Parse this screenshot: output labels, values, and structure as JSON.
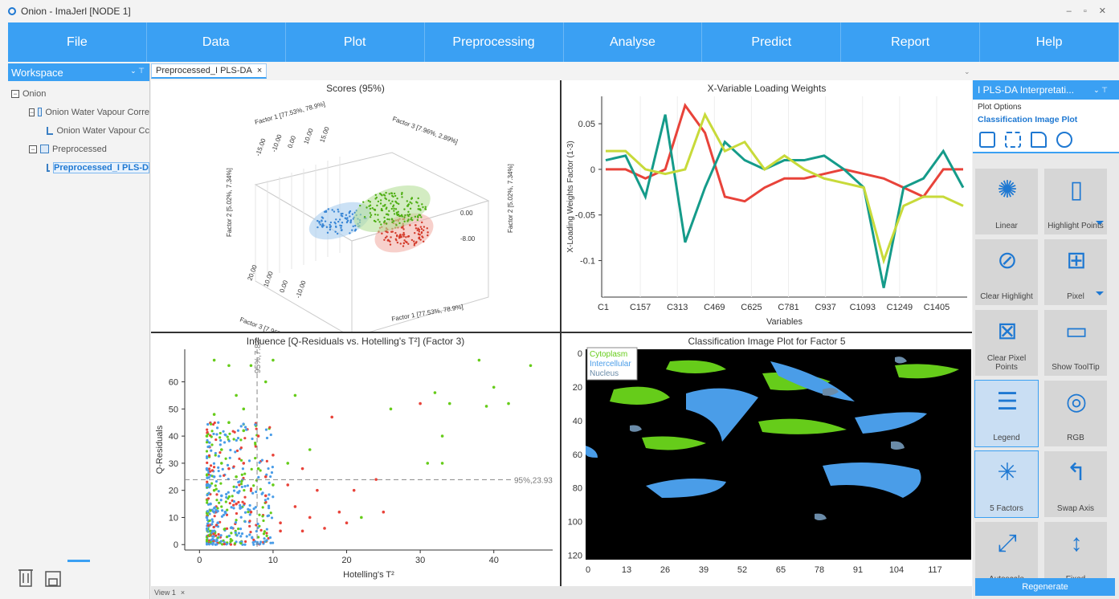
{
  "window": {
    "title": "Onion - ImaJerl [NODE 1]"
  },
  "menu": [
    "File",
    "Data",
    "Plot",
    "Preprocessing",
    "Analyse",
    "Predict",
    "Report",
    "Help"
  ],
  "workspace": {
    "title": "Workspace",
    "tree": [
      {
        "label": "Onion",
        "level": 0,
        "type": "root"
      },
      {
        "label": "Onion Water Vapour Corre",
        "level": 1,
        "type": "folder"
      },
      {
        "label": "Onion Water Vapour Cc",
        "level": 2,
        "type": "plot"
      },
      {
        "label": "Preprocessed",
        "level": 1,
        "type": "folder"
      },
      {
        "label": "Preprocessed_I PLS-D",
        "level": 2,
        "type": "plot",
        "selected": true
      }
    ]
  },
  "doc_tab": {
    "label": "Preprocessed_I PLS-DA",
    "close": "×"
  },
  "bottom_tab": {
    "label": "View 1",
    "close": "×"
  },
  "plots": {
    "scores": {
      "title": "Scores (95%)",
      "labels": [
        "Factor 1 [77.53%, 78.9%]",
        "Factor 3 [7.96%, 2.89%]",
        "Factor 2 [5.02%, 7.34%]",
        "Factor 2 [5.02%, 7.34%]",
        "Factor 3 [7.96%, 2.89%]",
        "Factor 1 [77.53%, 78.9%]"
      ],
      "ticks": [
        "-15.00",
        "-10.00",
        "0.00",
        "10.00",
        "15.00",
        "0.00",
        "-8.00",
        "20.00",
        "10.00",
        "0.00",
        "-10.00"
      ]
    },
    "loadings": {
      "title": "X-Variable Loading Weights",
      "xlabel": "Variables",
      "ylabel": "X-Loading Weights Factor (1-3)"
    },
    "influence": {
      "title": "Influence [Q-Residuals vs. Hotelling's T²] (Factor 3)",
      "xlabel": "Hotelling's T²",
      "ylabel": "Q-Residuals",
      "vline_label": "95%,7.83",
      "hline_label": "95%,23.93"
    },
    "classification": {
      "title": "Classification Image Plot for Factor 5",
      "legend": [
        {
          "name": "Cytoplasm",
          "color": "#66cc1a"
        },
        {
          "name": "Intercellular",
          "color": "#4a9de8"
        },
        {
          "name": "Nucleus",
          "color": "#6a8ba8"
        }
      ]
    }
  },
  "chart_data": [
    {
      "type": "line",
      "title": "X-Variable Loading Weights",
      "xlabel": "Variables",
      "ylabel": "X-Loading Weights Factor (1-3)",
      "x_ticks": [
        "C1",
        "C157",
        "C313",
        "C469",
        "C625",
        "C781",
        "C937",
        "C1093",
        "C1249",
        "C1405"
      ],
      "y_ticks": [
        0.05,
        0,
        -0.05,
        -0.1
      ],
      "ylim": [
        -0.14,
        0.08
      ],
      "series": [
        {
          "color": "#e8433a",
          "values": [
            0.0,
            0.0,
            -0.01,
            0.0,
            0.07,
            0.04,
            -0.03,
            -0.035,
            -0.02,
            -0.01,
            -0.01,
            -0.005,
            0.0,
            -0.005,
            -0.01,
            -0.02,
            -0.03,
            0.0,
            0.0
          ]
        },
        {
          "color": "#159b8a",
          "values": [
            0.01,
            0.015,
            -0.03,
            0.06,
            -0.08,
            -0.02,
            0.03,
            0.01,
            0.0,
            0.01,
            0.01,
            0.015,
            0.0,
            -0.02,
            -0.13,
            -0.02,
            -0.01,
            0.02,
            -0.02
          ]
        },
        {
          "color": "#c8da3a",
          "values": [
            0.02,
            0.02,
            0.0,
            -0.005,
            0.0,
            0.06,
            0.02,
            0.03,
            0.0,
            0.015,
            0.0,
            -0.01,
            -0.015,
            -0.02,
            -0.1,
            -0.04,
            -0.03,
            -0.03,
            -0.04
          ]
        }
      ]
    },
    {
      "type": "scatter",
      "title": "Influence [Q-Residuals vs. Hotelling's T²] (Factor 3)",
      "xlabel": "Hotelling's T²",
      "ylabel": "Q-Residuals",
      "x_ticks": [
        0,
        10,
        20,
        30,
        40
      ],
      "y_ticks": [
        0,
        10,
        20,
        30,
        40,
        50,
        60
      ],
      "xlim": [
        -2,
        48
      ],
      "ylim": [
        -2,
        72
      ],
      "series": [
        {
          "name": "Cytoplasm",
          "color": "#66cc1a",
          "points": [
            [
              2,
              68
            ],
            [
              4,
              66
            ],
            [
              7,
              66
            ],
            [
              10,
              68
            ],
            [
              9,
              60
            ],
            [
              5,
              55
            ],
            [
              13,
              55
            ],
            [
              2,
              48
            ],
            [
              4,
              45
            ],
            [
              6,
              42
            ],
            [
              3,
              35
            ],
            [
              8,
              28
            ],
            [
              10,
              22
            ],
            [
              12,
              30
            ],
            [
              26,
              50
            ],
            [
              32,
              56
            ],
            [
              34,
              52
            ],
            [
              38,
              68
            ],
            [
              40,
              58
            ],
            [
              39,
              51
            ],
            [
              45,
              66
            ],
            [
              42,
              52
            ],
            [
              33,
              40
            ],
            [
              33,
              30
            ],
            [
              31,
              30
            ],
            [
              22,
              10
            ],
            [
              15,
              35
            ],
            [
              6,
              50
            ],
            [
              1,
              40
            ],
            [
              3,
              30
            ],
            [
              5,
              25
            ],
            [
              2,
              20
            ]
          ]
        },
        {
          "name": "Intercellular",
          "color": "#4a9de8",
          "points": [
            [
              1,
              10
            ],
            [
              2,
              12
            ],
            [
              1.5,
              15
            ],
            [
              2.5,
              8
            ],
            [
              3,
              18
            ],
            [
              1,
              22
            ],
            [
              2,
              5
            ],
            [
              3.5,
              12
            ],
            [
              1,
              28
            ],
            [
              2,
              25
            ]
          ]
        },
        {
          "name": "Nucleus",
          "color": "#e8433a",
          "points": [
            [
              5,
              15
            ],
            [
              7,
              12
            ],
            [
              9,
              18
            ],
            [
              11,
              8
            ],
            [
              13,
              14
            ],
            [
              15,
              10
            ],
            [
              17,
              6
            ],
            [
              19,
              12
            ],
            [
              21,
              20
            ],
            [
              24,
              24
            ],
            [
              6,
              30
            ],
            [
              10,
              33
            ],
            [
              14,
              28
            ],
            [
              12,
              22
            ],
            [
              18,
              47
            ],
            [
              30,
              52
            ],
            [
              8,
              40
            ],
            [
              4,
              28
            ],
            [
              16,
              20
            ],
            [
              20,
              8
            ],
            [
              25,
              12
            ],
            [
              11,
              5
            ],
            [
              9,
              25
            ],
            [
              14,
              5
            ]
          ]
        }
      ],
      "v_line": 7.83,
      "h_line": 23.93
    },
    {
      "type": "heatmap",
      "title": "Classification Image Plot for Factor 5",
      "x_ticks": [
        0,
        13,
        26,
        39,
        52,
        65,
        78,
        91,
        104,
        117
      ],
      "y_ticks": [
        0,
        20,
        40,
        60,
        80,
        100,
        120
      ],
      "classes": [
        "Cytoplasm",
        "Intercellular",
        "Nucleus"
      ]
    }
  ],
  "right_panel": {
    "title": "I PLS-DA Interpretati...",
    "plot_options": "Plot Options",
    "current_plot": "Classification Image Plot",
    "tiles": [
      {
        "label": "Linear",
        "icon": "sun-icon"
      },
      {
        "label": "Highlight Points",
        "icon": "highlight-icon",
        "dropdown": true
      },
      {
        "label": "Clear Highlight",
        "icon": "clear-highlight-icon"
      },
      {
        "label": "Pixel",
        "icon": "pixel-icon",
        "dropdown": true
      },
      {
        "label": "Clear Pixel Points",
        "icon": "clear-pixel-icon"
      },
      {
        "label": "Show ToolTip",
        "icon": "tooltip-icon"
      },
      {
        "label": "Legend",
        "icon": "legend-icon",
        "active": true
      },
      {
        "label": "RGB",
        "icon": "palette-icon"
      },
      {
        "label": "5 Factors",
        "icon": "factors-icon",
        "active": true
      },
      {
        "label": "Swap Axis",
        "icon": "swap-icon"
      },
      {
        "label": "Autoscale",
        "icon": "autoscale-icon"
      },
      {
        "label": "Fixed",
        "icon": "fixed-icon"
      }
    ],
    "regenerate": "Regenerate"
  }
}
